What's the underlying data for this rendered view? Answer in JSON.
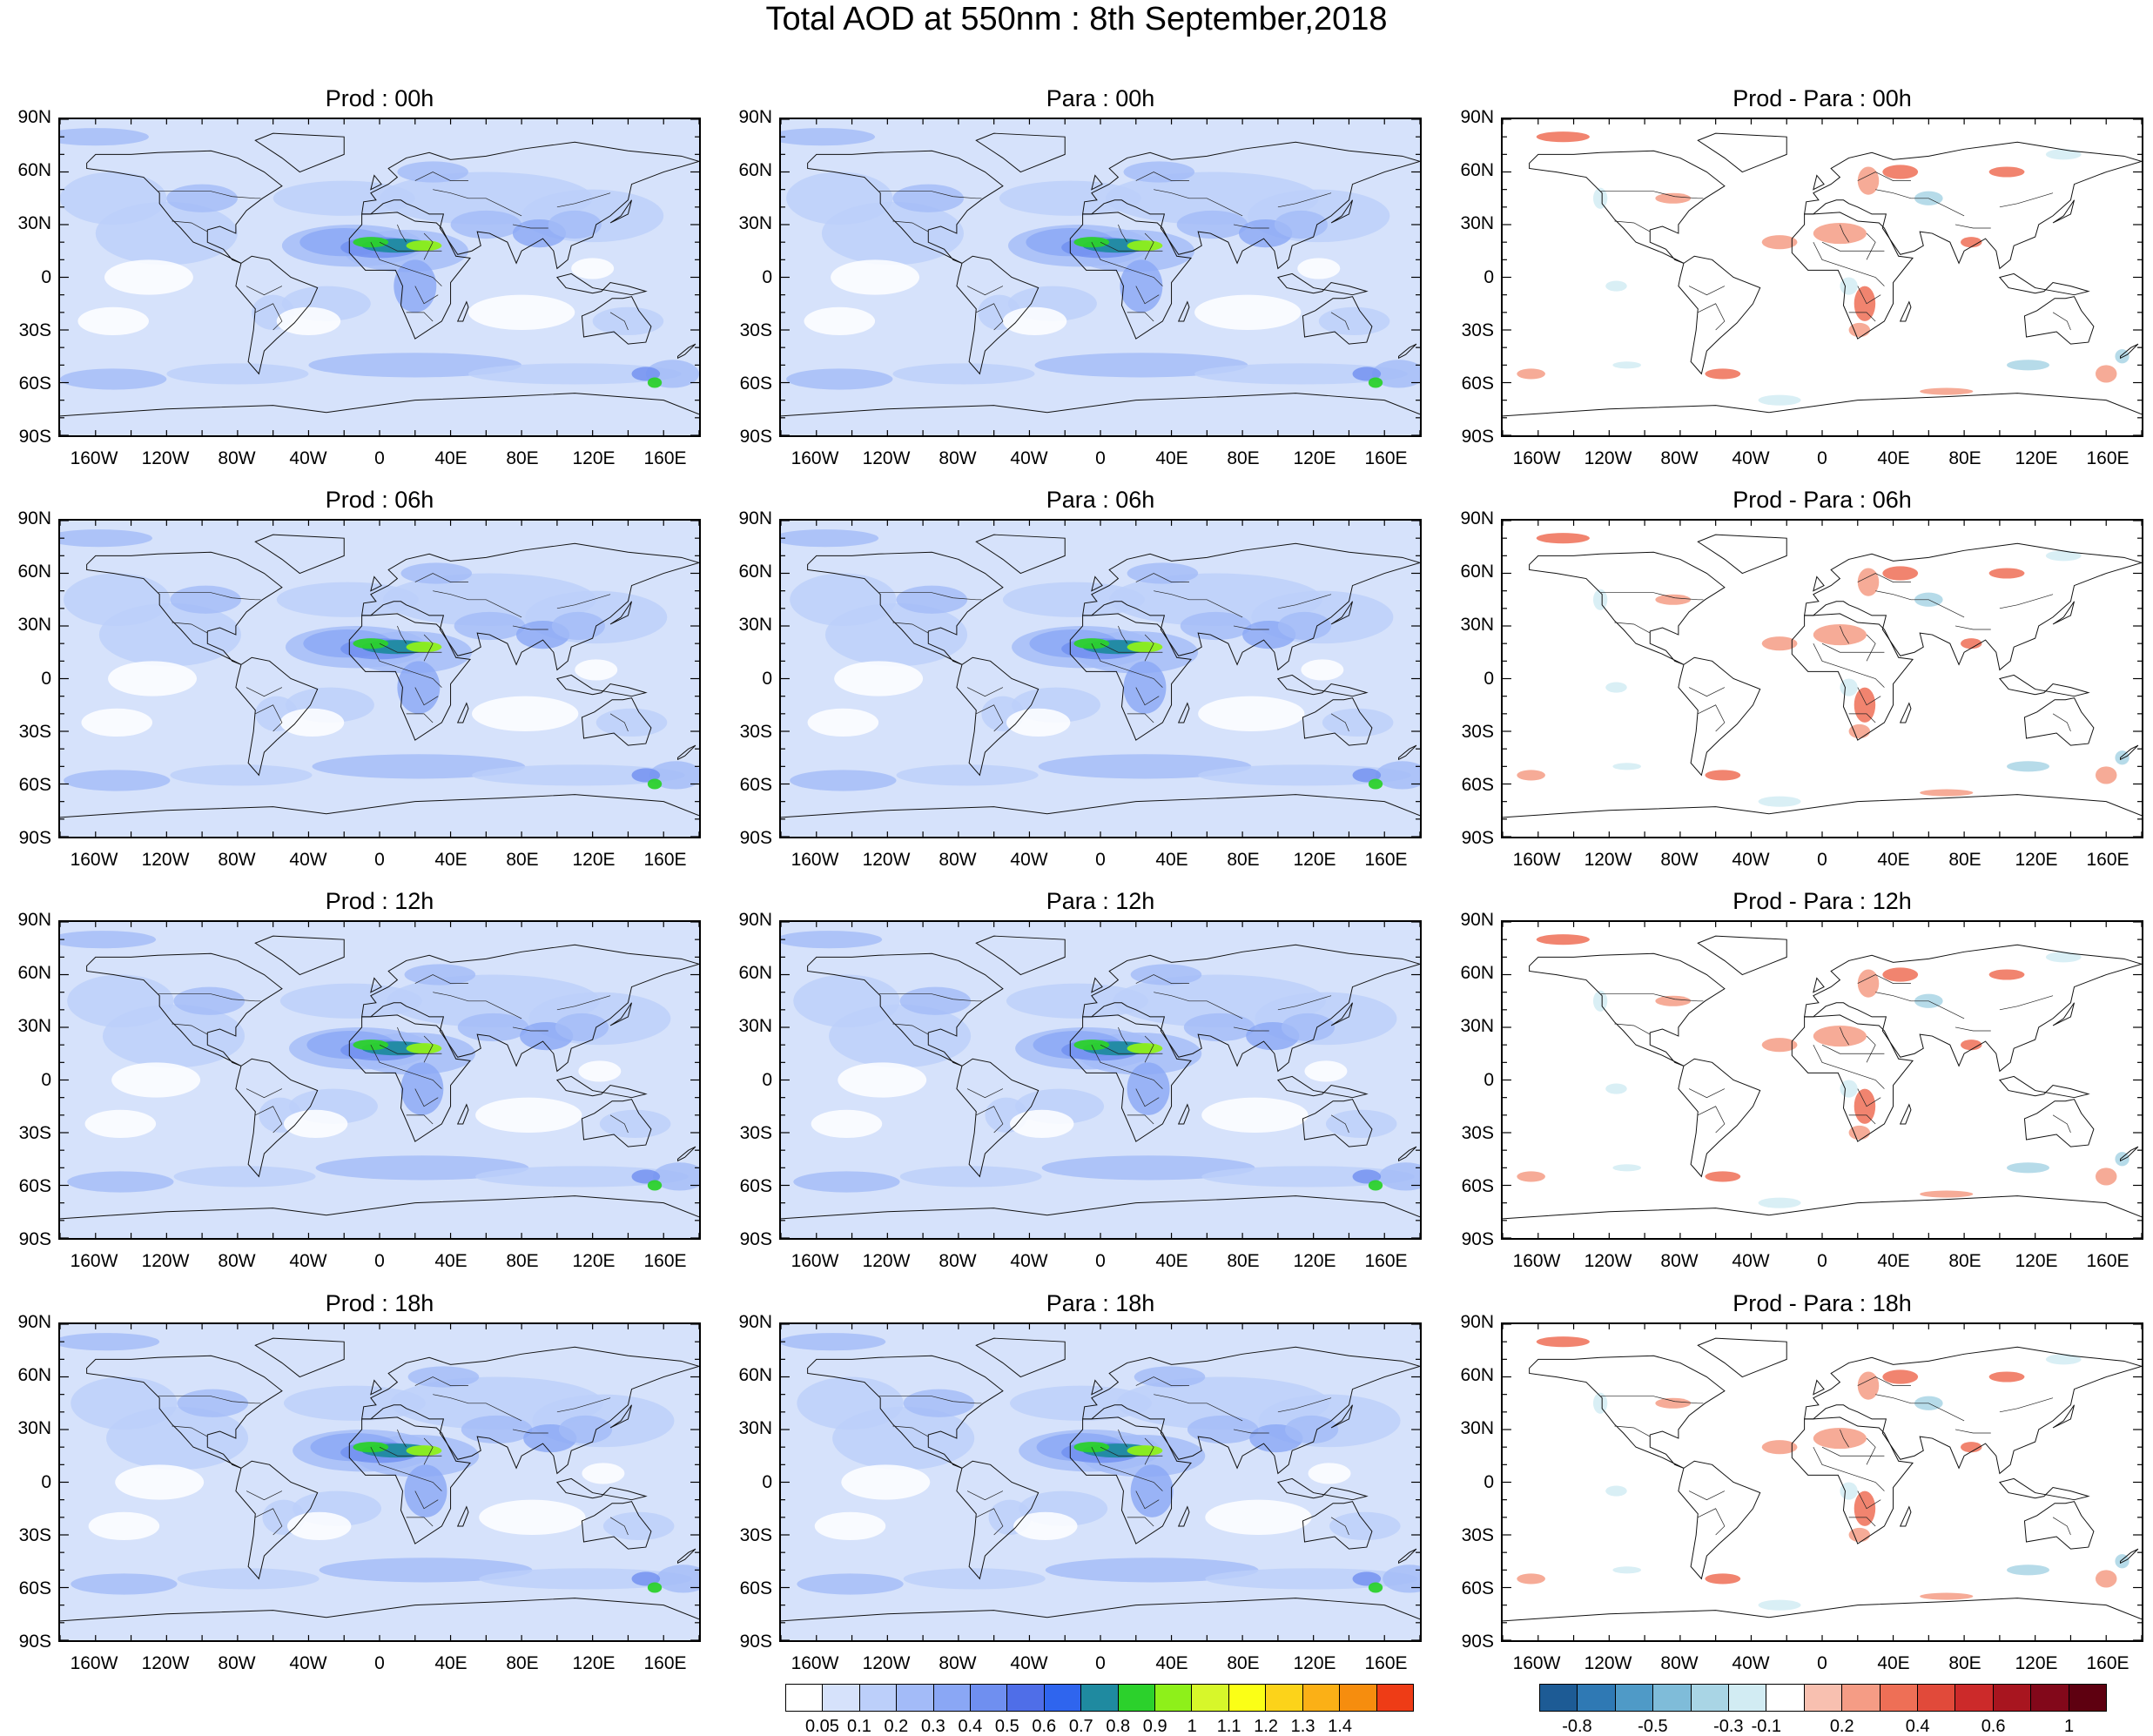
{
  "title": "Total AOD at 550nm : 8th September,2018",
  "lat_labels": [
    "90N",
    "60N",
    "30N",
    "0",
    "30S",
    "60S",
    "90S"
  ],
  "lon_labels": [
    "160W",
    "120W",
    "80W",
    "40W",
    "0",
    "40E",
    "80E",
    "120E",
    "160E"
  ],
  "panels": [
    {
      "title": "Prod : 00h",
      "kind": "aod"
    },
    {
      "title": "Para : 00h",
      "kind": "aod"
    },
    {
      "title": "Prod - Para : 00h",
      "kind": "diff"
    },
    {
      "title": "Prod : 06h",
      "kind": "aod"
    },
    {
      "title": "Para : 06h",
      "kind": "aod"
    },
    {
      "title": "Prod - Para : 06h",
      "kind": "diff"
    },
    {
      "title": "Prod : 12h",
      "kind": "aod"
    },
    {
      "title": "Para : 12h",
      "kind": "aod"
    },
    {
      "title": "Prod - Para : 12h",
      "kind": "diff"
    },
    {
      "title": "Prod : 18h",
      "kind": "aod"
    },
    {
      "title": "Para : 18h",
      "kind": "aod"
    },
    {
      "title": "Prod - Para : 18h",
      "kind": "diff"
    }
  ],
  "colorbar_aod": {
    "labels": [
      "0.05",
      "0.1",
      "0.2",
      "0.3",
      "0.4",
      "0.5",
      "0.6",
      "0.7",
      "0.8",
      "0.9",
      "1",
      "1.1",
      "1.2",
      "1.3",
      "1.4"
    ],
    "colors": [
      "#ffffff",
      "#d6e2fb",
      "#bccffa",
      "#a3bbf8",
      "#8aa7f5",
      "#6f8ff0",
      "#4f6ee8",
      "#2f65ee",
      "#1f8aa0",
      "#2cd12c",
      "#8ef01a",
      "#d7f72a",
      "#fbff16",
      "#fcd31a",
      "#fbb016",
      "#f68d0e",
      "#ee3c16"
    ]
  },
  "colorbar_diff": {
    "labels": [
      "-0.8",
      "-0.5",
      "-0.3",
      "-0.1",
      "0.2",
      "0.4",
      "0.6",
      "1"
    ],
    "colors": [
      "#1d5b95",
      "#2f79b4",
      "#4f9ac7",
      "#7fbcd9",
      "#a9d5e5",
      "#d2ecf3",
      "#ffffff",
      "#f8c0b0",
      "#f59c85",
      "#ee6f56",
      "#e14a3a",
      "#cc2a2a",
      "#a8151f",
      "#82081a",
      "#5e0010"
    ]
  }
}
